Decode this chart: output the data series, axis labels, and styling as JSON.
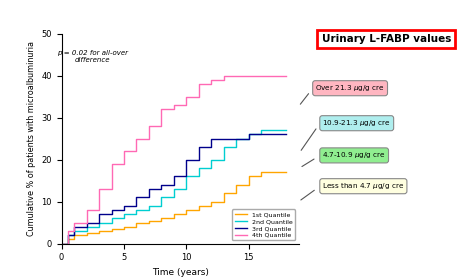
{
  "title": "Urinary L-FABP values",
  "xlabel": "Time (years)",
  "ylabel": "Cumulative % of patients with microalbuminuria",
  "p_text": "p = 0.02 for all-over\ndifference",
  "xlim": [
    0,
    19
  ],
  "ylim": [
    0,
    50
  ],
  "xticks": [
    0,
    5,
    10,
    15
  ],
  "yticks": [
    0,
    10,
    20,
    30,
    40,
    50
  ],
  "legend_labels": [
    "1st Quantile",
    "2nd Quantile",
    "3rd Quantile",
    "4th Quantile"
  ],
  "line_colors": [
    "#FFA500",
    "#00CED1",
    "#00008B",
    "#FF69B4"
  ],
  "annotation_colors": [
    "#FFB6C1",
    "#AFEEEE",
    "#90EE90",
    "#FFFFE0"
  ],
  "curves": {
    "q1": {
      "x": [
        0,
        0.5,
        0.5,
        1,
        1,
        2,
        2,
        3,
        3,
        4,
        4,
        5,
        5,
        6,
        6,
        7,
        7,
        8,
        8,
        9,
        9,
        10,
        10,
        11,
        11,
        12,
        12,
        13,
        13,
        14,
        14,
        15,
        15,
        16,
        16,
        17,
        17,
        18
      ],
      "y": [
        0,
        0,
        1,
        1,
        2,
        2,
        2.5,
        2.5,
        3,
        3,
        3.5,
        3.5,
        4,
        4,
        5,
        5,
        5.5,
        5.5,
        6,
        6,
        7,
        7,
        8,
        8,
        9,
        9,
        10,
        10,
        12,
        12,
        14,
        14,
        16,
        16,
        17,
        17,
        17,
        17
      ]
    },
    "q2": {
      "x": [
        0,
        0.5,
        0.5,
        1,
        1,
        2,
        2,
        3,
        3,
        4,
        4,
        5,
        5,
        6,
        6,
        7,
        7,
        8,
        8,
        9,
        9,
        10,
        10,
        11,
        11,
        12,
        12,
        13,
        13,
        14,
        14,
        15,
        15,
        16,
        16,
        17,
        17,
        18
      ],
      "y": [
        0,
        0,
        2,
        2,
        3,
        3,
        4,
        4,
        5,
        5,
        6,
        6,
        7,
        7,
        8,
        8,
        9,
        9,
        11,
        11,
        13,
        13,
        16,
        16,
        18,
        18,
        20,
        20,
        23,
        23,
        25,
        25,
        26,
        26,
        27,
        27,
        27,
        27
      ]
    },
    "q3": {
      "x": [
        0,
        0.5,
        0.5,
        1,
        1,
        2,
        2,
        3,
        3,
        4,
        4,
        5,
        5,
        6,
        6,
        7,
        7,
        8,
        8,
        9,
        9,
        10,
        10,
        11,
        11,
        12,
        12,
        13,
        13,
        14,
        14,
        15,
        15,
        16,
        16,
        17,
        17,
        18
      ],
      "y": [
        0,
        0,
        2,
        2,
        4,
        4,
        5,
        5,
        7,
        7,
        8,
        8,
        9,
        9,
        11,
        11,
        13,
        13,
        14,
        14,
        16,
        16,
        20,
        20,
        23,
        23,
        25,
        25,
        25,
        25,
        25,
        25,
        26,
        26,
        26,
        26,
        26,
        26
      ]
    },
    "q4": {
      "x": [
        0,
        0.5,
        0.5,
        1,
        1,
        2,
        2,
        3,
        3,
        4,
        4,
        5,
        5,
        6,
        6,
        7,
        7,
        8,
        8,
        9,
        9,
        10,
        10,
        11,
        11,
        12,
        12,
        13,
        13,
        14,
        14,
        15,
        15,
        16,
        16,
        17,
        17,
        18
      ],
      "y": [
        0,
        0,
        3,
        3,
        5,
        5,
        8,
        8,
        13,
        13,
        19,
        19,
        22,
        22,
        25,
        25,
        28,
        28,
        32,
        32,
        33,
        33,
        35,
        35,
        38,
        38,
        39,
        39,
        40,
        40,
        40,
        40,
        40,
        40,
        40,
        40,
        40,
        40
      ]
    }
  }
}
